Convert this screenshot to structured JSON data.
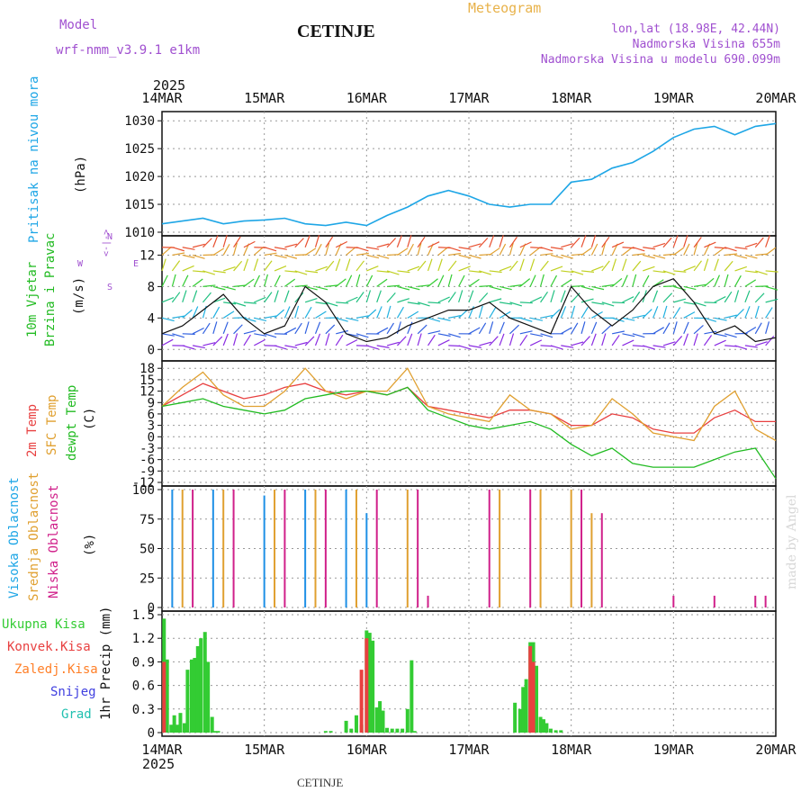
{
  "header": {
    "title": "CETINJE",
    "meteogram_label": "Meteogram",
    "model_label": "Model",
    "model_name": "wrf-nmm_v3.9.1  e1km",
    "lonlat": "lon,lat (18.98E, 42.44N)",
    "elevation": "Nadmorska Visina 655m",
    "model_elevation": "Nadmorska Visina u modelu 690.099m",
    "credit": "made by Angel",
    "bottom_station": "CETINJE"
  },
  "time_axis": {
    "year": "2025",
    "labels": [
      "14MAR",
      "15MAR",
      "16MAR",
      "17MAR",
      "18MAR",
      "19MAR",
      "20MAR"
    ]
  },
  "wind_direction_legend": {
    "north": "N",
    "east": "E",
    "west": "W",
    "south": "S",
    "arrow_top": "<-|->",
    "arrow_bottom": "<-|->"
  },
  "colors": {
    "pressure": "#1ea6e6",
    "wind_label": "#22bb22",
    "temp_2m": "#e84040",
    "temp_sfc": "#e0a030",
    "dewpoint": "#22bb22",
    "cloud_high": "#1e90e6",
    "cloud_mid": "#e0a030",
    "cloud_low": "#d0208a",
    "precip_total": "#33cc33",
    "precip_conv": "#e84040",
    "precip_frozen": "#ff7f27",
    "snow": "#4040e0",
    "hail": "#20c0b0",
    "legend_purple": "#a050d0"
  },
  "panels": {
    "pressure": {
      "ylabel": "Pritisak na nivou mora",
      "unit": "(hPa)"
    },
    "wind": {
      "ylabel1": "10m Vjetar",
      "ylabel2": "Brzina i Pravac",
      "unit": "(m/s)"
    },
    "temp": {
      "ylabel1": "2m Temp",
      "ylabel2": "SFC Temp",
      "ylabel3": "dewpt Temp",
      "unit": "(C)"
    },
    "cloud": {
      "ylabel1": "Visoka Oblacnost",
      "ylabel2": "Srednja Oblacnost",
      "ylabel3": "Niska Oblacnost",
      "unit": "(%)"
    },
    "precip": {
      "legend": [
        "Ukupna Kisa",
        "Konvek.Kisa",
        "Zaledj.Kisa",
        "Snijeg",
        "Grad"
      ],
      "ylabel": "1hr Precip (mm)"
    }
  },
  "chart_data": [
    {
      "type": "line",
      "panel": "pressure",
      "ylim": [
        1010,
        1031
      ],
      "yticks": [
        1010,
        1015,
        1020,
        1025,
        1030
      ],
      "grid": true,
      "series": [
        {
          "color_key": "pressure",
          "x_days": [
            0,
            0.2,
            0.4,
            0.6,
            0.8,
            1.0,
            1.2,
            1.4,
            1.6,
            1.8,
            2.0,
            2.2,
            2.4,
            2.6,
            2.8,
            3.0,
            3.2,
            3.4,
            3.6,
            3.8,
            4.0,
            4.2,
            4.4,
            4.6,
            4.8,
            5.0,
            5.2,
            5.4,
            5.6,
            5.8,
            6.0
          ],
          "values": [
            1011.5,
            1012.0,
            1012.5,
            1011.5,
            1012.0,
            1012.2,
            1012.5,
            1011.5,
            1011.2,
            1011.8,
            1011.2,
            1013.0,
            1014.5,
            1016.5,
            1017.5,
            1016.5,
            1015.0,
            1014.5,
            1015.0,
            1015.0,
            1019.0,
            1019.5,
            1021.5,
            1022.5,
            1024.5,
            1027.0,
            1028.5,
            1029.0,
            1027.5,
            1029.0,
            1029.5
          ]
        }
      ]
    },
    {
      "type": "line",
      "panel": "wind",
      "ylim": [
        -1,
        14
      ],
      "yticks": [
        0,
        4,
        8,
        12
      ],
      "grid": true,
      "series": [
        {
          "name": "wind speed",
          "x_days": [
            0,
            0.2,
            0.4,
            0.6,
            0.8,
            1.0,
            1.2,
            1.4,
            1.6,
            1.8,
            2.0,
            2.2,
            2.4,
            2.6,
            2.8,
            3.0,
            3.2,
            3.4,
            3.6,
            3.8,
            4.0,
            4.2,
            4.4,
            4.6,
            4.8,
            5.0,
            5.2,
            5.4,
            5.6,
            5.8,
            6.0
          ],
          "values": [
            2,
            3,
            5,
            7,
            4,
            2,
            3,
            8,
            6,
            2,
            1,
            1.5,
            3,
            4,
            5,
            5,
            6,
            4,
            3,
            2,
            8,
            5,
            3,
            5,
            8,
            9,
            6,
            2,
            3,
            1,
            1.5
          ]
        }
      ]
    },
    {
      "type": "line",
      "panel": "temp",
      "ylim": [
        -12,
        19
      ],
      "yticks": [
        -12,
        -9,
        -6,
        -3,
        0,
        3,
        6,
        9,
        12,
        15,
        18
      ],
      "grid": true,
      "series": [
        {
          "name": "2m Temp",
          "color_key": "temp_2m",
          "x_days": [
            0,
            0.2,
            0.4,
            0.6,
            0.8,
            1.0,
            1.2,
            1.4,
            1.6,
            1.8,
            2.0,
            2.2,
            2.4,
            2.6,
            2.8,
            3.0,
            3.2,
            3.4,
            3.6,
            3.8,
            4.0,
            4.2,
            4.4,
            4.6,
            4.8,
            5.0,
            5.2,
            5.4,
            5.6,
            5.8,
            6.0
          ],
          "values": [
            8,
            11,
            14,
            12,
            10,
            11,
            13,
            14,
            12,
            11,
            12,
            11,
            13,
            8,
            7,
            6,
            5,
            7,
            7,
            6,
            3,
            3,
            6,
            5,
            2,
            1,
            1,
            5,
            7,
            4,
            4
          ]
        },
        {
          "name": "SFC Temp",
          "color_key": "temp_sfc",
          "x_days": [
            0,
            0.2,
            0.4,
            0.6,
            0.8,
            1.0,
            1.2,
            1.4,
            1.6,
            1.8,
            2.0,
            2.2,
            2.4,
            2.6,
            2.8,
            3.0,
            3.2,
            3.4,
            3.6,
            3.8,
            4.0,
            4.2,
            4.4,
            4.6,
            4.8,
            5.0,
            5.2,
            5.4,
            5.6,
            5.8,
            6.0
          ],
          "values": [
            8,
            13,
            17,
            11,
            8,
            8,
            12,
            18,
            12,
            10,
            12,
            12,
            18,
            8,
            6,
            5,
            4,
            11,
            7,
            6,
            2,
            3,
            10,
            6,
            1,
            0,
            -1,
            8,
            12,
            2,
            -1
          ]
        },
        {
          "name": "dewpt Temp",
          "color_key": "dewpoint",
          "x_days": [
            0,
            0.2,
            0.4,
            0.6,
            0.8,
            1.0,
            1.2,
            1.4,
            1.6,
            1.8,
            2.0,
            2.2,
            2.4,
            2.6,
            2.8,
            3.0,
            3.2,
            3.4,
            3.6,
            3.8,
            4.0,
            4.2,
            4.4,
            4.6,
            4.8,
            5.0,
            5.2,
            5.4,
            5.6,
            5.8,
            6.0
          ],
          "values": [
            8,
            9,
            10,
            8,
            7,
            6,
            7,
            10,
            11,
            12,
            12,
            11,
            13,
            7,
            5,
            3,
            2,
            3,
            4,
            2,
            -2,
            -5,
            -3,
            -7,
            -8,
            -8,
            -8,
            -6,
            -4,
            -3,
            -11
          ]
        }
      ]
    },
    {
      "type": "bar",
      "panel": "cloud",
      "ylim": [
        0,
        100
      ],
      "yticks": [
        0,
        25,
        50,
        75,
        100
      ],
      "grid": true,
      "series": [
        {
          "name": "Visoka Oblacnost",
          "color_key": "cloud_high",
          "x_days": [
            0.1,
            0.5,
            1.0,
            1.4,
            1.8,
            2.0,
            2.3
          ],
          "values": [
            100,
            100,
            95,
            100,
            100,
            80,
            0
          ]
        },
        {
          "name": "Srednja Oblacnost",
          "color_key": "cloud_mid",
          "x_days": [
            0.2,
            0.6,
            1.1,
            1.5,
            1.9,
            2.4,
            3.3,
            3.7,
            4.0,
            4.2
          ],
          "values": [
            100,
            100,
            100,
            100,
            100,
            100,
            100,
            100,
            100,
            80
          ]
        },
        {
          "name": "Niska Oblacnost",
          "color_key": "cloud_low",
          "x_days": [
            0.3,
            0.7,
            1.2,
            1.6,
            2.1,
            2.5,
            2.6,
            3.2,
            3.6,
            4.1,
            4.3,
            5.0,
            5.4,
            5.8,
            5.9
          ],
          "values": [
            100,
            100,
            100,
            100,
            100,
            100,
            10,
            100,
            100,
            100,
            80,
            10,
            10,
            10,
            10
          ]
        }
      ]
    },
    {
      "type": "bar",
      "panel": "precip",
      "ylim": [
        0,
        1.5
      ],
      "yticks": [
        0,
        0.3,
        0.6,
        0.9,
        1.2,
        1.5
      ],
      "grid": true,
      "series": [
        {
          "name": "Ukupna Kisa",
          "color_key": "precip_total",
          "x_days": [
            0.02,
            0.05,
            0.09,
            0.12,
            0.15,
            0.18,
            0.22,
            0.25,
            0.29,
            0.32,
            0.35,
            0.38,
            0.42,
            0.45,
            0.49,
            0.52,
            0.55,
            1.6,
            1.65,
            1.8,
            1.85,
            1.9,
            1.95,
            2.0,
            2.03,
            2.06,
            2.1,
            2.13,
            2.16,
            2.2,
            2.25,
            2.3,
            2.35,
            2.4,
            2.44,
            2.47,
            3.45,
            3.5,
            3.53,
            3.56,
            3.6,
            3.63,
            3.66,
            3.7,
            3.73,
            3.76,
            3.8,
            3.85,
            3.9
          ],
          "values": [
            1.45,
            0.93,
            0.1,
            0.22,
            0.1,
            0.25,
            0.12,
            0.8,
            0.93,
            0.95,
            1.1,
            1.2,
            1.28,
            0.9,
            0.2,
            0.02,
            0.02,
            0.02,
            0.02,
            0.15,
            0.05,
            0.22,
            0.1,
            1.3,
            1.27,
            1.17,
            0.32,
            0.4,
            0.28,
            0.06,
            0.05,
            0.05,
            0.05,
            0.3,
            0.92,
            0.02,
            0.38,
            0.3,
            0.58,
            0.68,
            1.15,
            1.15,
            0.85,
            0.2,
            0.17,
            0.12,
            0.05,
            0.03,
            0.03
          ]
        },
        {
          "name": "Konvek.Kisa",
          "color_key": "precip_conv",
          "x_days": [
            0.02,
            1.95,
            2.0,
            3.6,
            3.63
          ],
          "values": [
            0.9,
            0.8,
            1.2,
            1.1,
            0.9
          ]
        }
      ]
    }
  ]
}
